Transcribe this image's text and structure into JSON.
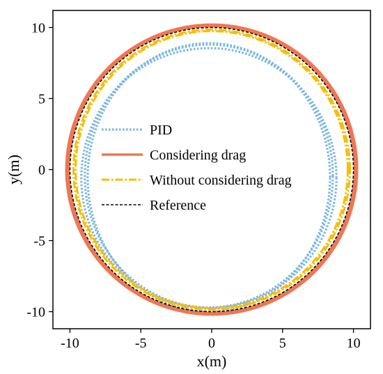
{
  "chart_data": {
    "type": "line",
    "title": "",
    "xlabel": "x(m)",
    "ylabel": "y(m)",
    "xlim": [
      -11.2,
      11.2
    ],
    "ylim": [
      -11.2,
      11.2
    ],
    "xticks": [
      -10,
      -5,
      0,
      5,
      10
    ],
    "yticks": [
      -10,
      -5,
      0,
      5,
      10
    ],
    "xtick_labels": [
      "-10",
      "-5",
      "0",
      "5",
      "10"
    ],
    "ytick_labels": [
      "-10",
      "-5",
      "0",
      "5",
      "10"
    ],
    "grid": false,
    "legend_position": "center",
    "series": [
      {
        "name": "PID",
        "color": "#7ab6e2",
        "style": "dotted",
        "turns": [
          {
            "cx": -0.2,
            "cy": -0.6,
            "rx": 9.0,
            "ry": 9.15
          },
          {
            "cx": -0.2,
            "cy": -0.45,
            "rx": 8.75,
            "ry": 9.25
          },
          {
            "cx": -0.2,
            "cy": -0.55,
            "rx": 8.55,
            "ry": 9.45
          }
        ]
      },
      {
        "name": "Considering drag",
        "color": "#ef7753",
        "style": "solid",
        "turns": [
          {
            "cx": 0.0,
            "cy": 0.0,
            "rx": 10.25,
            "ry": 10.2
          },
          {
            "cx": 0.0,
            "cy": 0.0,
            "rx": 10.1,
            "ry": 10.1
          }
        ]
      },
      {
        "name": "Without considering drag",
        "color": "#f7bd00",
        "style": "dashdot",
        "turns": [
          {
            "cx": 0.0,
            "cy": 0.0,
            "rx": 9.75,
            "ry": 9.85
          },
          {
            "cx": 0.0,
            "cy": 0.0,
            "rx": 9.6,
            "ry": 9.75
          }
        ]
      },
      {
        "name": "Reference",
        "color": "#000000",
        "style": "dashed",
        "turns": [
          {
            "cx": 0.0,
            "cy": 0.0,
            "rx": 10.0,
            "ry": 10.0
          }
        ]
      }
    ]
  }
}
